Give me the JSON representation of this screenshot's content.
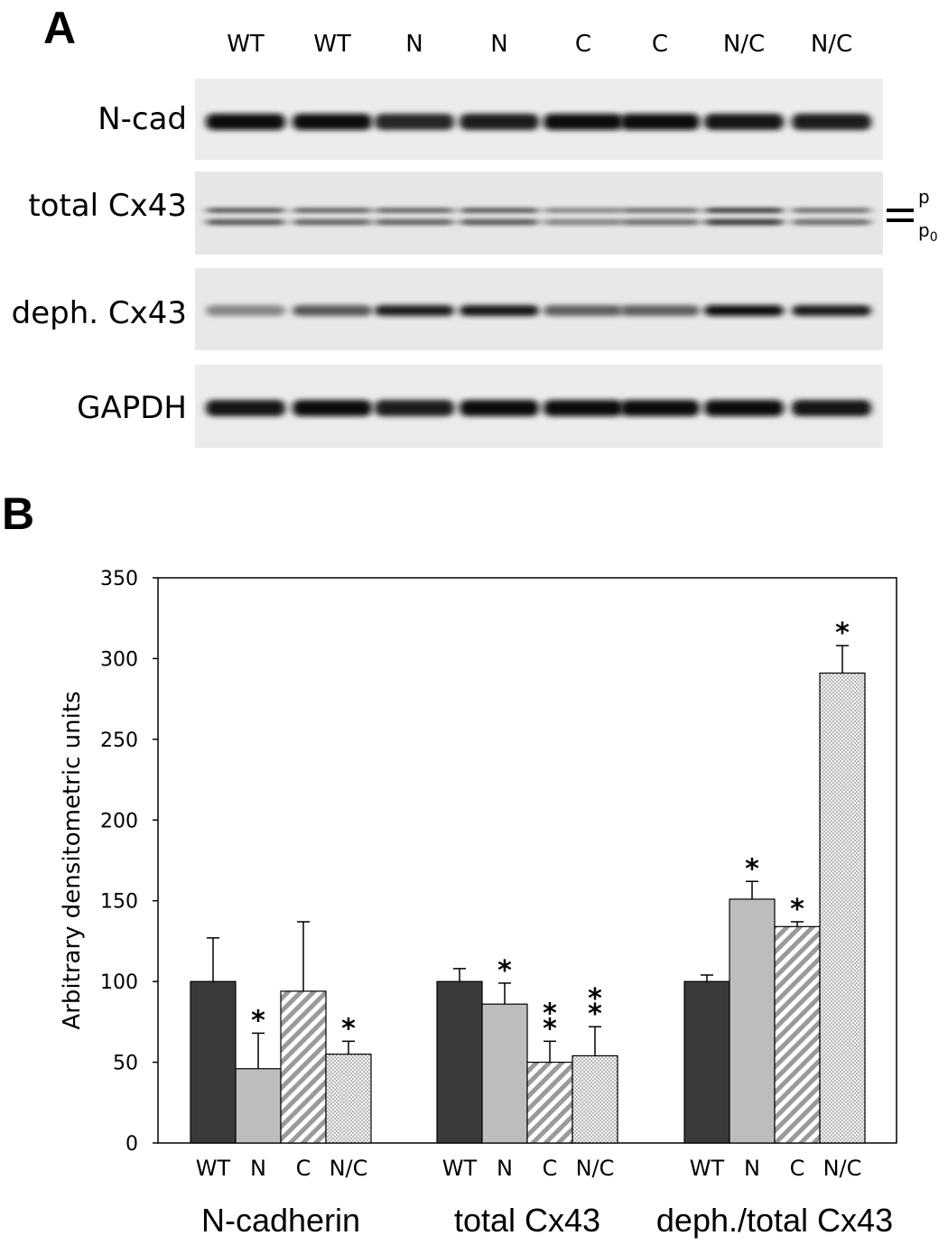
{
  "panel_a": {
    "letter": "A",
    "lanes": [
      "WT",
      "WT",
      "N",
      "N",
      "C",
      "C",
      "N/C",
      "N/C"
    ],
    "blots": [
      {
        "label": "N-cad",
        "bands": [
          1.0,
          1.0,
          0.85,
          0.9,
          1.0,
          1.0,
          0.95,
          0.9
        ]
      },
      {
        "label": "total Cx43",
        "bands": [
          0.55,
          0.5,
          0.5,
          0.55,
          0.35,
          0.45,
          0.7,
          0.45
        ]
      },
      {
        "label": "deph. Cx43",
        "bands": [
          0.35,
          0.6,
          0.9,
          0.95,
          0.55,
          0.55,
          1.0,
          0.9
        ]
      },
      {
        "label": "GAPDH",
        "bands": [
          0.95,
          1.0,
          0.9,
          1.0,
          1.0,
          1.0,
          1.0,
          0.95
        ]
      }
    ],
    "phospho_markers": {
      "upper": "p",
      "lower": "p",
      "lower_subscript": "0"
    }
  },
  "panel_b": {
    "letter": "B"
  },
  "chart_data": {
    "type": "bar",
    "ylabel": "Arbitrary densitometric units",
    "ylim": [
      0,
      350
    ],
    "yticks": [
      0,
      50,
      100,
      150,
      200,
      250,
      300,
      350
    ],
    "grid": false,
    "groups": [
      "N-cadherin",
      "total Cx43",
      "deph./total Cx43"
    ],
    "series": [
      {
        "name": "WT",
        "fill": "solid",
        "color": "#3a3a3a",
        "values": [
          100,
          100,
          100
        ],
        "errors": [
          27,
          8,
          4
        ],
        "significance": [
          "",
          "",
          ""
        ]
      },
      {
        "name": "N",
        "fill": "solid",
        "color": "#bdbdbd",
        "values": [
          46,
          86,
          151
        ],
        "errors": [
          22,
          13,
          11
        ],
        "significance": [
          "*",
          "*",
          "*"
        ]
      },
      {
        "name": "C",
        "fill": "diagonal-hatch",
        "color": "#8a8a8a",
        "values": [
          94,
          50,
          134
        ],
        "errors": [
          43,
          13,
          3
        ],
        "significance": [
          "",
          "**",
          "*"
        ]
      },
      {
        "name": "N/C",
        "fill": "dotted",
        "color": "#9a9a9a",
        "values": [
          55,
          54,
          291
        ],
        "errors": [
          8,
          18,
          17
        ],
        "significance": [
          "*",
          "**",
          "*"
        ]
      }
    ]
  }
}
